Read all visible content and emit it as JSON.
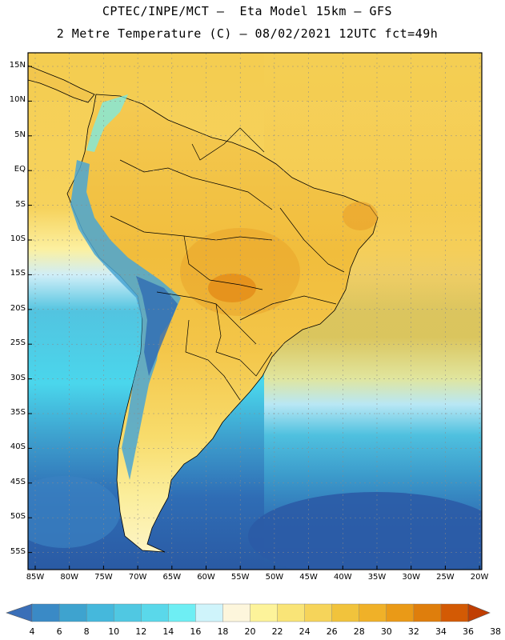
{
  "header": {
    "line1": "CPTEC/INPE/MCT –  Eta Model 15km – GFS",
    "line2": "2 Metre Temperature (C) – 08/02/2021 12UTC fct=49h"
  },
  "axes": {
    "lat_labels": [
      "15N",
      "10N",
      "5N",
      "EQ",
      "5S",
      "10S",
      "15S",
      "20S",
      "25S",
      "30S",
      "35S",
      "40S",
      "45S",
      "50S",
      "55S"
    ],
    "lon_labels": [
      "85W",
      "80W",
      "75W",
      "70W",
      "65W",
      "60W",
      "55W",
      "50W",
      "45W",
      "40W",
      "35W",
      "30W",
      "25W",
      "20W"
    ],
    "grid": true
  },
  "colorbar": {
    "values": [
      "4",
      "6",
      "8",
      "10",
      "12",
      "14",
      "16",
      "18",
      "20",
      "22",
      "24",
      "26",
      "28",
      "30",
      "32",
      "34",
      "36",
      "38"
    ],
    "colors": [
      "#3a6fb8",
      "#3a8ac6",
      "#3ea3cf",
      "#45b8dc",
      "#50c8e2",
      "#5ad8ea",
      "#6eeef4",
      "#cff4fb",
      "#fdf6dc",
      "#fdf39a",
      "#f9e477",
      "#f6d45a",
      "#f1c33c",
      "#f0b128",
      "#ea9a17",
      "#df7e0c",
      "#d35a04",
      "#c03e02"
    ]
  },
  "map_colors": {
    "ocean_south": "#2e63ad",
    "ocean_mid": "#4fc6e3",
    "ocean_tropical": "#f6cf52",
    "land_warm": "#f3c246",
    "land_hot": "#e99a1d",
    "andes": "#4ba8d3",
    "border": "#000000"
  }
}
